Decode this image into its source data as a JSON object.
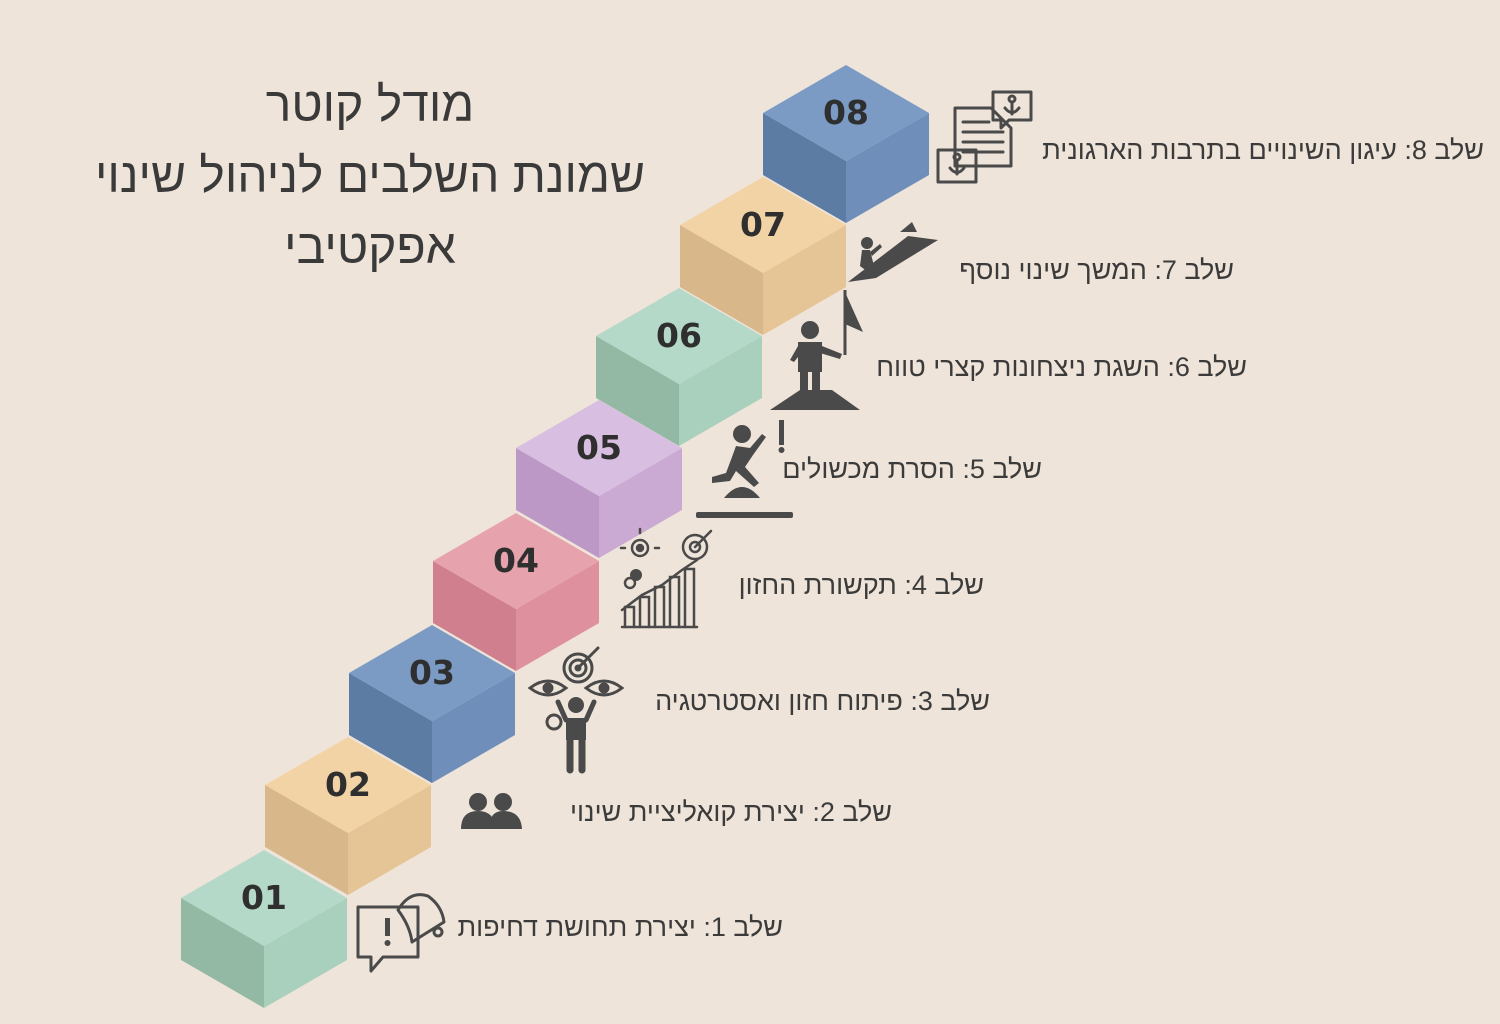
{
  "title": {
    "line1": "מודל קוטר",
    "line2": "שמונת השלבים לניהול שינוי",
    "line3": "אפקטיבי"
  },
  "steps": [
    {
      "num": "01",
      "label": "שלב 1: יצירת תחושת דחיפות",
      "icon": "megaphone-alert-icon",
      "colors": {
        "top": "#B5D9C8",
        "left": "#93B9A5",
        "right": "#A9D0BC"
      }
    },
    {
      "num": "02",
      "label": "שלב 2: יצירת קואליציית שינוי",
      "icon": "people-group-icon",
      "colors": {
        "top": "#F2D3A6",
        "left": "#D8B78A",
        "right": "#E5C496"
      }
    },
    {
      "num": "03",
      "label": "שלב 3: פיתוח חזון ואסטרטגיה",
      "icon": "visionary-person-icon",
      "colors": {
        "top": "#7B9BC4",
        "left": "#5D7CA4",
        "right": "#6F8FBA"
      }
    },
    {
      "num": "04",
      "label": "שלב 4: תקשורת החזון",
      "icon": "growth-chart-target-icon",
      "colors": {
        "top": "#E6A3AE",
        "left": "#CF7F8E",
        "right": "#DE909F"
      }
    },
    {
      "num": "05",
      "label": "שלב 5: הסרת מכשולים",
      "icon": "jumping-obstacle-icon",
      "colors": {
        "top": "#D8BEE0",
        "left": "#BC98C6",
        "right": "#CAAAD3"
      }
    },
    {
      "num": "06",
      "label": "שלב 6: השגת ניצחונות קצרי טווח",
      "icon": "flag-summit-icon",
      "colors": {
        "top": "#B5D9C8",
        "left": "#93B9A5",
        "right": "#A9D0BC"
      }
    },
    {
      "num": "07",
      "label": "שלב 7: המשך שינוי נוסף",
      "icon": "climber-arrow-icon",
      "colors": {
        "top": "#F2D3A6",
        "left": "#D8B78A",
        "right": "#E5C496"
      }
    },
    {
      "num": "08",
      "label": "שלב 8: עיגון השינויים בתרבות הארגונית",
      "icon": "anchor-documents-icon",
      "colors": {
        "top": "#7B9BC4",
        "left": "#5D7CA4",
        "right": "#6F8FBA"
      }
    }
  ],
  "colors": {
    "background": "#EFE4D9",
    "text": "#3b3b3b",
    "icon": "#4a4a4a"
  }
}
